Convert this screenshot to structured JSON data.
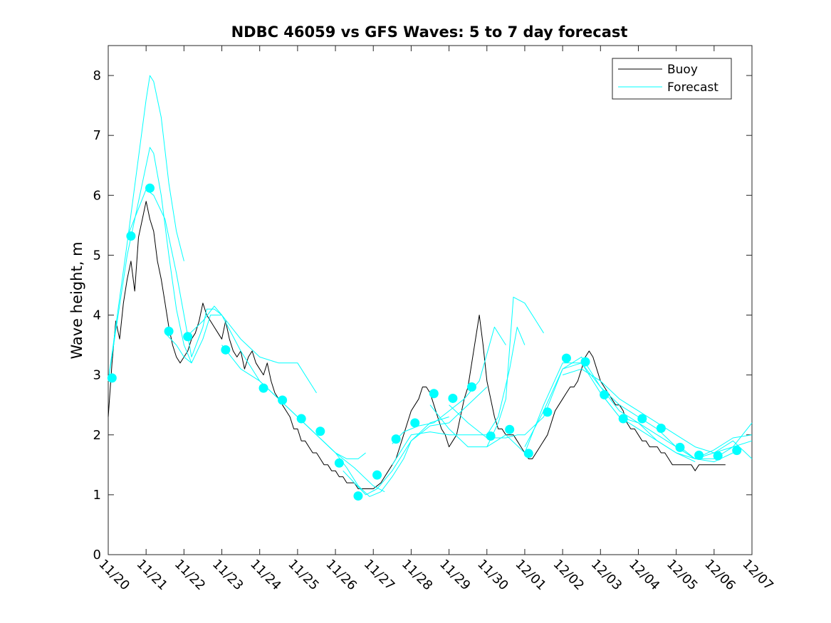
{
  "chart_data": {
    "type": "line",
    "title": "NDBC 46059 vs GFS Waves: 5 to 7 day forecast",
    "xlabel": "",
    "ylabel": "Wave height, m",
    "xlim": [
      0,
      17
    ],
    "ylim": [
      0,
      8.5
    ],
    "x_ticks": [
      0,
      1,
      2,
      3,
      4,
      5,
      6,
      7,
      8,
      9,
      10,
      11,
      12,
      13,
      14,
      15,
      16,
      17
    ],
    "x_tick_labels": [
      "11/20",
      "11/21",
      "11/22",
      "11/23",
      "11/24",
      "11/25",
      "11/26",
      "11/27",
      "11/28",
      "11/29",
      "11/30",
      "12/01",
      "12/02",
      "12/03",
      "12/04",
      "12/05",
      "12/06",
      "12/07"
    ],
    "y_ticks": [
      0,
      1,
      2,
      3,
      4,
      5,
      6,
      7,
      8
    ],
    "y_tick_labels": [
      "0",
      "1",
      "2",
      "3",
      "4",
      "5",
      "6",
      "7",
      "8"
    ],
    "legend": {
      "position": "top-right",
      "entries": [
        {
          "label": "Buoy",
          "color": "#000000"
        },
        {
          "label": "Forecast",
          "color": "#00ffff"
        }
      ]
    },
    "colors": {
      "buoy": "#000000",
      "forecast": "#00ffff"
    },
    "series": [
      {
        "name": "Buoy",
        "x": [
          0,
          0.1,
          0.2,
          0.3,
          0.4,
          0.5,
          0.6,
          0.7,
          0.8,
          0.9,
          1.0,
          1.1,
          1.2,
          1.3,
          1.4,
          1.5,
          1.6,
          1.7,
          1.8,
          1.9,
          2.0,
          2.1,
          2.2,
          2.3,
          2.4,
          2.5,
          2.6,
          2.7,
          2.8,
          2.9,
          3.0,
          3.1,
          3.2,
          3.3,
          3.4,
          3.5,
          3.6,
          3.7,
          3.8,
          3.9,
          4.0,
          4.1,
          4.2,
          4.3,
          4.4,
          4.5,
          4.6,
          4.7,
          4.8,
          4.9,
          5.0,
          5.1,
          5.2,
          5.3,
          5.4,
          5.5,
          5.6,
          5.7,
          5.8,
          5.9,
          6.0,
          6.1,
          6.2,
          6.3,
          6.4,
          6.5,
          6.6,
          6.7,
          6.8,
          6.9,
          7.0,
          7.1,
          7.2,
          7.3,
          7.4,
          7.5,
          7.6,
          7.7,
          7.8,
          7.9,
          8.0,
          8.1,
          8.2,
          8.3,
          8.4,
          8.5,
          8.6,
          8.7,
          8.8,
          8.9,
          9.0,
          9.1,
          9.2,
          9.3,
          9.4,
          9.5,
          9.6,
          9.7,
          9.8,
          9.9,
          10.0,
          10.1,
          10.2,
          10.3,
          10.4,
          10.5,
          10.6,
          10.7,
          10.8,
          10.9,
          11.0,
          11.1,
          11.2,
          11.3,
          11.4,
          11.5,
          11.6,
          11.7,
          11.8,
          11.9,
          12.0,
          12.1,
          12.2,
          12.3,
          12.4,
          12.5,
          12.6,
          12.7,
          12.8,
          12.9,
          13.0,
          13.1,
          13.2,
          13.3,
          13.4,
          13.5,
          13.6,
          13.7,
          13.8,
          13.9,
          14.0,
          14.1,
          14.2,
          14.3,
          14.4,
          14.5,
          14.6,
          14.7,
          14.8,
          14.9,
          15.0,
          15.1,
          15.2,
          15.3,
          15.4,
          15.5,
          15.6,
          15.7,
          15.8,
          15.9,
          16.0,
          16.1,
          16.2,
          16.3
        ],
        "values": [
          2.3,
          3.2,
          3.9,
          3.6,
          4.2,
          4.6,
          4.9,
          4.4,
          5.3,
          5.6,
          5.9,
          5.6,
          5.4,
          4.9,
          4.6,
          4.2,
          3.8,
          3.5,
          3.3,
          3.2,
          3.3,
          3.4,
          3.6,
          3.7,
          3.9,
          4.2,
          4.0,
          3.9,
          3.8,
          3.7,
          3.6,
          3.9,
          3.6,
          3.4,
          3.3,
          3.4,
          3.1,
          3.3,
          3.4,
          3.2,
          3.1,
          3.0,
          3.2,
          2.9,
          2.7,
          2.6,
          2.5,
          2.4,
          2.3,
          2.1,
          2.1,
          1.9,
          1.9,
          1.8,
          1.7,
          1.7,
          1.6,
          1.5,
          1.5,
          1.4,
          1.4,
          1.3,
          1.3,
          1.2,
          1.2,
          1.2,
          1.1,
          1.1,
          1.1,
          1.1,
          1.1,
          1.15,
          1.2,
          1.3,
          1.4,
          1.5,
          1.6,
          1.8,
          2.0,
          2.2,
          2.4,
          2.5,
          2.6,
          2.8,
          2.8,
          2.7,
          2.5,
          2.3,
          2.1,
          2.0,
          1.8,
          1.9,
          2.0,
          2.3,
          2.6,
          2.8,
          3.2,
          3.6,
          4.0,
          3.5,
          2.9,
          2.6,
          2.3,
          2.1,
          2.1,
          2.0,
          2.0,
          2.0,
          1.9,
          1.8,
          1.7,
          1.6,
          1.6,
          1.7,
          1.8,
          1.9,
          2.0,
          2.2,
          2.4,
          2.5,
          2.6,
          2.7,
          2.8,
          2.8,
          2.9,
          3.1,
          3.3,
          3.4,
          3.3,
          3.1,
          2.9,
          2.8,
          2.7,
          2.6,
          2.5,
          2.5,
          2.4,
          2.2,
          2.1,
          2.1,
          2.0,
          1.9,
          1.9,
          1.8,
          1.8,
          1.8,
          1.7,
          1.7,
          1.6,
          1.5,
          1.5,
          1.5,
          1.5,
          1.5,
          1.5,
          1.4,
          1.5,
          1.5,
          1.5,
          1.5,
          1.5,
          1.5,
          1.5,
          1.5
        ]
      },
      {
        "name": "Forecast",
        "x": [
          0,
          0.5,
          1.0,
          1.1,
          1.2,
          1.4,
          1.6,
          1.8,
          2.0
        ],
        "values": [
          2.9,
          5.2,
          7.6,
          8.0,
          7.9,
          7.3,
          6.2,
          5.4,
          4.9
        ]
      },
      {
        "name": "Forecast",
        "x": [
          0,
          0.5,
          1.0,
          1.1,
          1.2,
          1.4,
          1.6,
          1.8,
          2.0,
          2.2
        ],
        "values": [
          2.9,
          5.0,
          6.5,
          6.8,
          6.7,
          6.0,
          5.0,
          4.1,
          3.5,
          3.2
        ]
      },
      {
        "name": "Forecast",
        "x": [
          0.5,
          1.0,
          1.2,
          1.5,
          1.8,
          2.0,
          2.2,
          2.5,
          2.6,
          2.8,
          3.0
        ],
        "values": [
          5.3,
          6.1,
          6.0,
          5.6,
          4.7,
          4.0,
          3.3,
          3.8,
          4.1,
          4.1,
          4.0
        ]
      },
      {
        "name": "Forecast",
        "x": [
          1.5,
          1.8,
          2.0,
          2.2,
          2.5,
          2.7,
          3.0,
          3.5,
          4.0,
          4.5,
          5.0,
          5.5
        ],
        "values": [
          3.7,
          3.5,
          3.3,
          3.2,
          3.6,
          4.0,
          4.0,
          3.6,
          3.3,
          3.2,
          3.2,
          2.7
        ]
      },
      {
        "name": "Forecast",
        "x": [
          2.0,
          2.5,
          2.8,
          3.0,
          3.5,
          4.0,
          4.5,
          5.0,
          5.5,
          6.0,
          6.5,
          7.0,
          7.3
        ],
        "values": [
          3.6,
          3.9,
          4.15,
          4.0,
          3.4,
          2.9,
          2.6,
          2.3,
          2.0,
          1.7,
          1.45,
          1.15,
          1.05
        ]
      },
      {
        "name": "Forecast",
        "x": [
          3.0,
          3.5,
          4.0,
          4.5,
          5.0,
          5.5,
          6.0,
          6.3,
          6.6,
          6.8
        ],
        "values": [
          3.5,
          3.1,
          2.9,
          2.6,
          2.3,
          2.0,
          1.7,
          1.6,
          1.6,
          1.7
        ]
      },
      {
        "name": "Forecast",
        "x": [
          5.0,
          5.5,
          6.0,
          6.3,
          6.6,
          6.9,
          7.2,
          7.5,
          7.8,
          8.0,
          8.5,
          9.0
        ],
        "values": [
          2.3,
          2.0,
          1.7,
          1.45,
          1.15,
          0.97,
          1.05,
          1.3,
          1.6,
          1.9,
          2.2,
          2.3
        ]
      },
      {
        "name": "Forecast",
        "x": [
          6.2,
          6.5,
          6.8,
          7.1,
          7.5,
          8.0,
          8.5,
          9.0,
          9.5,
          10.0
        ],
        "values": [
          1.4,
          1.2,
          1.0,
          1.1,
          1.4,
          1.9,
          2.15,
          2.2,
          2.5,
          2.8
        ]
      },
      {
        "name": "Forecast",
        "x": [
          7.5,
          7.8,
          8.2,
          8.6,
          9.0,
          9.4,
          9.8,
          10.2,
          10.5
        ],
        "values": [
          1.85,
          2.05,
          2.15,
          2.2,
          2.4,
          2.6,
          2.9,
          3.8,
          3.5
        ]
      },
      {
        "name": "Forecast",
        "x": [
          7.5,
          7.8,
          8.0,
          8.5,
          9.0,
          9.5,
          10.0,
          10.3,
          10.6,
          10.8,
          11.0
        ],
        "values": [
          1.5,
          1.8,
          2.0,
          2.05,
          2.0,
          2.0,
          2.0,
          2.3,
          3.1,
          3.8,
          3.5
        ]
      },
      {
        "name": "Forecast",
        "x": [
          8.5,
          9.0,
          9.5,
          10.0,
          10.3,
          10.5,
          10.7,
          11.0,
          11.3,
          11.5
        ],
        "values": [
          2.5,
          2.1,
          1.8,
          1.8,
          2.2,
          2.6,
          4.3,
          4.2,
          3.9,
          3.7
        ]
      },
      {
        "name": "Forecast",
        "x": [
          9.0,
          9.5,
          10.0,
          10.5,
          10.8,
          11.0,
          11.5,
          12.0,
          12.5,
          13.0,
          13.5,
          14.0
        ],
        "values": [
          2.5,
          2.2,
          1.95,
          1.95,
          2.0,
          2.0,
          2.3,
          3.1,
          3.2,
          2.8,
          2.5,
          2.3
        ]
      },
      {
        "name": "Forecast",
        "x": [
          10.0,
          10.5,
          11.0,
          11.5,
          12.0,
          12.5,
          13.0,
          13.5,
          14.0,
          14.5,
          15.0,
          15.5
        ],
        "values": [
          1.8,
          2.0,
          1.7,
          2.5,
          3.2,
          3.2,
          2.7,
          2.3,
          2.1,
          1.9,
          1.7,
          1.55
        ]
      },
      {
        "name": "Forecast",
        "x": [
          11.0,
          11.5,
          12.0,
          12.5,
          13.0,
          13.5,
          14.0,
          14.5,
          15.0,
          15.5,
          16.0,
          16.5
        ],
        "values": [
          1.8,
          2.4,
          3.1,
          3.3,
          2.8,
          2.4,
          2.2,
          1.9,
          1.7,
          1.6,
          1.55,
          1.7
        ]
      },
      {
        "name": "Forecast",
        "x": [
          12.0,
          12.5,
          13.0,
          13.5,
          14.0,
          14.5,
          15.0,
          15.5,
          16.0,
          16.5,
          17.0
        ],
        "values": [
          3.0,
          3.1,
          2.9,
          2.6,
          2.4,
          2.2,
          2.0,
          1.8,
          1.7,
          1.8,
          2.2
        ]
      },
      {
        "name": "Forecast",
        "x": [
          13.0,
          13.5,
          14.0,
          14.5,
          15.0,
          15.5,
          16.0,
          16.5,
          17.0
        ],
        "values": [
          2.7,
          2.3,
          2.2,
          2.0,
          1.8,
          1.6,
          1.75,
          1.95,
          2.0
        ]
      },
      {
        "name": "Forecast",
        "x": [
          14.0,
          14.5,
          15.0,
          15.5,
          16.0,
          16.5,
          17.0
        ],
        "values": [
          2.3,
          2.1,
          1.8,
          1.6,
          1.7,
          1.9,
          1.6
        ]
      },
      {
        "name": "Forecast",
        "x": [
          15.0,
          15.5,
          16.0,
          16.5,
          17.0
        ],
        "values": [
          1.85,
          1.6,
          1.6,
          1.8,
          1.9
        ]
      }
    ],
    "markers": {
      "name": "Forecast",
      "x": [
        0.1,
        0.6,
        1.1,
        1.6,
        2.1,
        3.1,
        4.1,
        4.6,
        5.1,
        5.6,
        6.1,
        6.6,
        7.1,
        7.6,
        8.1,
        8.6,
        9.1,
        9.6,
        10.1,
        10.6,
        11.1,
        11.6,
        12.1,
        12.6,
        13.1,
        13.6,
        14.1,
        14.6,
        15.1,
        15.6,
        16.1,
        16.6
      ],
      "values": [
        2.95,
        5.32,
        6.12,
        3.73,
        3.64,
        3.42,
        2.78,
        2.58,
        2.27,
        2.06,
        1.53,
        0.98,
        1.33,
        1.93,
        2.2,
        2.69,
        2.61,
        2.8,
        1.98,
        2.09,
        1.69,
        2.38,
        3.28,
        3.22,
        2.67,
        2.27,
        2.27,
        2.11,
        1.79,
        1.66,
        1.65,
        1.74
      ]
    }
  }
}
